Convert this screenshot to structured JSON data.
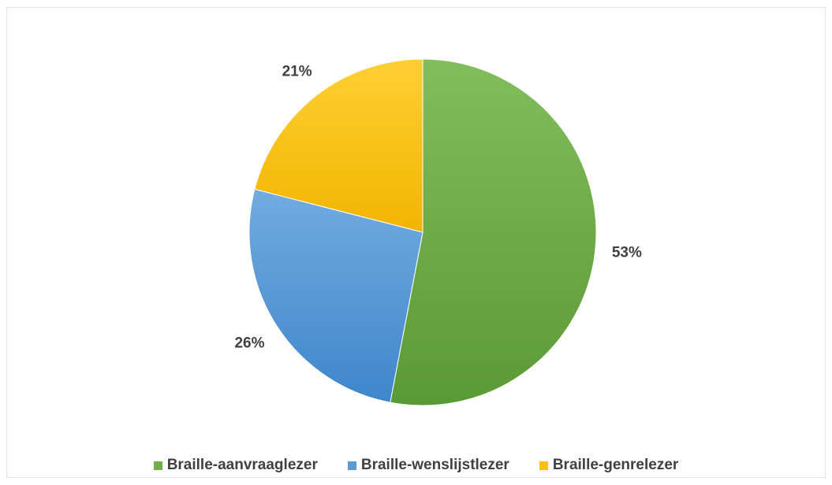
{
  "chart_data": {
    "type": "pie",
    "categories": [
      "Braille-aanvraaglezer",
      "Braille-wenslijstlezer",
      "Braille-genrelezer"
    ],
    "values": [
      53,
      26,
      21
    ],
    "value_labels": [
      "53%",
      "26%",
      "21%"
    ],
    "colors": [
      "#70ad47",
      "#5b9bd5",
      "#ffc000"
    ],
    "start_angle_deg": 0,
    "direction": "clockwise",
    "legend_position": "bottom"
  }
}
